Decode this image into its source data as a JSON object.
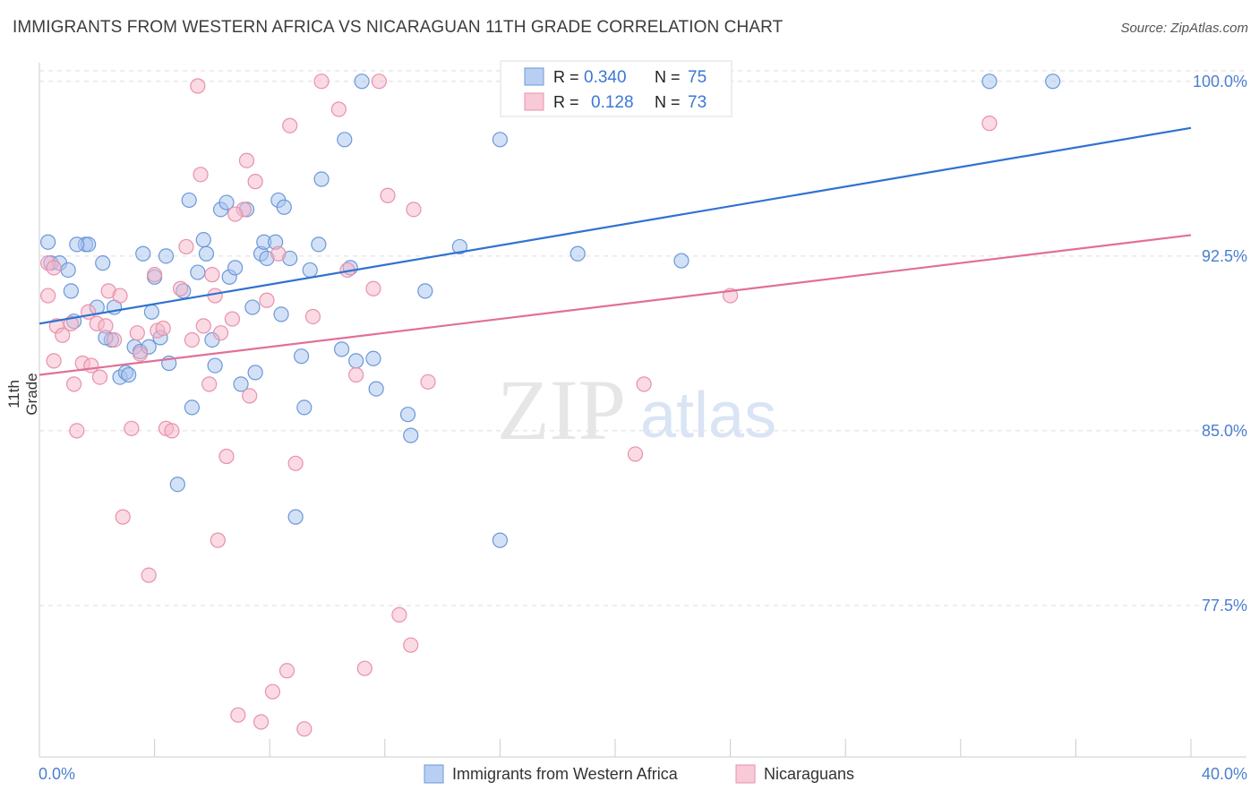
{
  "header": {
    "title": "IMMIGRANTS FROM WESTERN AFRICA VS NICARAGUAN 11TH GRADE CORRELATION CHART",
    "source": "Source: ZipAtlas.com"
  },
  "watermark": {
    "zip": "ZIP",
    "atlas": "atlas"
  },
  "stats": [
    {
      "r_label": "R =",
      "r_value": "0.340",
      "n_label": "N =",
      "n_value": "75"
    },
    {
      "r_label": "R =",
      "r_value": "0.128",
      "n_label": "N =",
      "n_value": "73"
    }
  ],
  "colors": {
    "blue_fill": "#a8c4ef",
    "blue_stroke": "#6b98d8",
    "blue_line": "#2f72d0",
    "pink_fill": "#f5b6c8",
    "pink_stroke": "#e891ad",
    "pink_line": "#e07099",
    "tick_label": "#4a7fd0",
    "grid": "#dddddd"
  },
  "chart_data": {
    "type": "scatter",
    "title": "IMMIGRANTS FROM WESTERN AFRICA VS NICARAGUAN 11TH GRADE CORRELATION CHART",
    "xlabel": "",
    "ylabel": "11th Grade",
    "xlim": [
      0,
      40
    ],
    "ylim": [
      71,
      100.8
    ],
    "x_tick_labels": [
      "0.0%",
      "40.0%"
    ],
    "y_ticks": [
      77.5,
      85.0,
      92.5,
      100.0
    ],
    "y_tick_labels": [
      "77.5%",
      "85.0%",
      "92.5%",
      "100.0%"
    ],
    "grid": true,
    "legend_position": "bottom",
    "series": [
      {
        "name": "Immigrants from Western Africa",
        "color": "#6b98d8",
        "trend": {
          "x": [
            0,
            40
          ],
          "y": [
            89.6,
            98.0
          ]
        },
        "points": [
          [
            0.3,
            93.1
          ],
          [
            0.4,
            92.2
          ],
          [
            0.7,
            92.2
          ],
          [
            1.0,
            91.9
          ],
          [
            1.1,
            91.0
          ],
          [
            1.2,
            89.7
          ],
          [
            1.6,
            93.0
          ],
          [
            1.7,
            93.0
          ],
          [
            2.0,
            90.3
          ],
          [
            2.2,
            92.2
          ],
          [
            2.6,
            90.3
          ],
          [
            2.5,
            88.9
          ],
          [
            2.8,
            87.3
          ],
          [
            3.0,
            87.5
          ],
          [
            3.1,
            87.4
          ],
          [
            3.3,
            88.6
          ],
          [
            3.5,
            88.4
          ],
          [
            3.6,
            92.6
          ],
          [
            3.9,
            90.1
          ],
          [
            4.0,
            91.6
          ],
          [
            4.2,
            89.0
          ],
          [
            4.4,
            92.5
          ],
          [
            4.5,
            87.9
          ],
          [
            4.8,
            82.7
          ],
          [
            5.0,
            91.0
          ],
          [
            5.2,
            94.9
          ],
          [
            5.3,
            86.0
          ],
          [
            5.5,
            91.8
          ],
          [
            5.7,
            93.2
          ],
          [
            5.8,
            92.6
          ],
          [
            6.1,
            87.8
          ],
          [
            6.3,
            94.5
          ],
          [
            6.5,
            94.8
          ],
          [
            6.6,
            91.6
          ],
          [
            6.8,
            92.0
          ],
          [
            7.0,
            87.0
          ],
          [
            7.2,
            94.5
          ],
          [
            7.4,
            90.3
          ],
          [
            7.5,
            87.5
          ],
          [
            7.7,
            92.6
          ],
          [
            7.8,
            93.1
          ],
          [
            7.9,
            92.4
          ],
          [
            8.2,
            93.1
          ],
          [
            8.3,
            94.9
          ],
          [
            8.4,
            90.0
          ],
          [
            8.5,
            94.6
          ],
          [
            8.7,
            92.4
          ],
          [
            8.9,
            81.3
          ],
          [
            9.1,
            88.2
          ],
          [
            9.2,
            86.0
          ],
          [
            9.4,
            91.9
          ],
          [
            9.7,
            93.0
          ],
          [
            9.8,
            95.8
          ],
          [
            10.5,
            88.5
          ],
          [
            10.8,
            92.0
          ],
          [
            11.0,
            88.0
          ],
          [
            11.6,
            88.1
          ],
          [
            11.7,
            86.8
          ],
          [
            12.8,
            85.7
          ],
          [
            12.9,
            84.8
          ],
          [
            13.4,
            91.0
          ],
          [
            14.6,
            92.9
          ],
          [
            16.0,
            80.3
          ],
          [
            16.0,
            97.5
          ],
          [
            18.7,
            92.6
          ],
          [
            22.3,
            92.3
          ],
          [
            33.0,
            100.0
          ],
          [
            35.2,
            100.0
          ],
          [
            10.6,
            97.5
          ],
          [
            11.2,
            100.0
          ],
          [
            17.0,
            100.0
          ],
          [
            1.3,
            93.0
          ],
          [
            6.0,
            88.9
          ],
          [
            3.8,
            88.6
          ],
          [
            2.3,
            89.0
          ]
        ]
      },
      {
        "name": "Nicaraguans",
        "color": "#e891ad",
        "trend": {
          "x": [
            0,
            40
          ],
          "y": [
            87.4,
            93.4
          ]
        },
        "points": [
          [
            0.3,
            92.2
          ],
          [
            0.3,
            90.8
          ],
          [
            0.5,
            88.0
          ],
          [
            0.6,
            89.5
          ],
          [
            0.8,
            89.1
          ],
          [
            1.1,
            89.6
          ],
          [
            1.2,
            87.0
          ],
          [
            1.3,
            85.0
          ],
          [
            1.5,
            87.9
          ],
          [
            1.7,
            90.1
          ],
          [
            1.8,
            87.8
          ],
          [
            2.0,
            89.6
          ],
          [
            2.1,
            87.3
          ],
          [
            2.3,
            89.5
          ],
          [
            2.4,
            91.0
          ],
          [
            2.6,
            88.9
          ],
          [
            2.8,
            90.8
          ],
          [
            2.9,
            81.3
          ],
          [
            3.2,
            85.1
          ],
          [
            3.4,
            89.2
          ],
          [
            3.5,
            88.3
          ],
          [
            3.8,
            78.8
          ],
          [
            4.0,
            91.7
          ],
          [
            4.1,
            89.3
          ],
          [
            4.3,
            89.4
          ],
          [
            4.4,
            85.1
          ],
          [
            4.6,
            85.0
          ],
          [
            4.9,
            91.1
          ],
          [
            5.1,
            92.9
          ],
          [
            5.3,
            88.9
          ],
          [
            5.6,
            96.0
          ],
          [
            5.7,
            89.5
          ],
          [
            5.9,
            87.0
          ],
          [
            6.0,
            91.7
          ],
          [
            6.1,
            90.8
          ],
          [
            6.2,
            80.3
          ],
          [
            6.3,
            89.2
          ],
          [
            6.5,
            83.9
          ],
          [
            6.7,
            89.8
          ],
          [
            6.9,
            72.8
          ],
          [
            7.1,
            94.5
          ],
          [
            7.2,
            96.6
          ],
          [
            7.3,
            86.5
          ],
          [
            7.5,
            95.7
          ],
          [
            7.7,
            72.5
          ],
          [
            7.9,
            90.6
          ],
          [
            8.1,
            73.8
          ],
          [
            8.3,
            92.6
          ],
          [
            8.6,
            74.7
          ],
          [
            8.7,
            98.1
          ],
          [
            8.9,
            83.6
          ],
          [
            9.2,
            72.2
          ],
          [
            9.5,
            89.9
          ],
          [
            9.8,
            100.0
          ],
          [
            10.4,
            98.8
          ],
          [
            10.7,
            91.9
          ],
          [
            11.0,
            87.4
          ],
          [
            11.3,
            74.8
          ],
          [
            11.6,
            91.1
          ],
          [
            11.8,
            100.0
          ],
          [
            12.1,
            95.1
          ],
          [
            12.5,
            77.1
          ],
          [
            12.9,
            75.8
          ],
          [
            13.0,
            94.5
          ],
          [
            13.5,
            87.1
          ],
          [
            17.8,
            100.0
          ],
          [
            20.7,
            84.0
          ],
          [
            21.0,
            87.0
          ],
          [
            24.0,
            90.8
          ],
          [
            33.0,
            98.2
          ],
          [
            5.5,
            99.8
          ],
          [
            0.5,
            92.0
          ],
          [
            6.8,
            94.3
          ]
        ]
      }
    ]
  },
  "legend": {
    "items": [
      {
        "label": "Immigrants from Western Africa"
      },
      {
        "label": "Nicaraguans"
      }
    ]
  }
}
